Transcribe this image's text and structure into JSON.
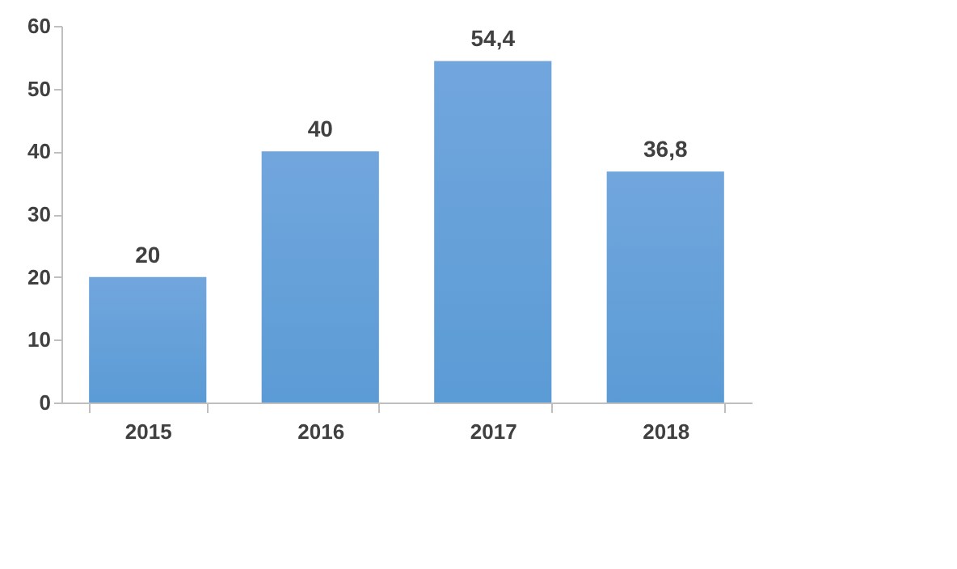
{
  "chart_data": {
    "type": "bar",
    "categories": [
      "2015",
      "2016",
      "2017",
      "2018"
    ],
    "values": [
      20,
      40,
      54.4,
      36.8
    ],
    "value_labels": [
      "20",
      "40",
      "54,4",
      "36,8"
    ],
    "color": "#5b9bd5",
    "ylim": [
      0,
      60
    ],
    "yticks": [
      0,
      10,
      20,
      30,
      40,
      50,
      60
    ],
    "grid": false
  }
}
